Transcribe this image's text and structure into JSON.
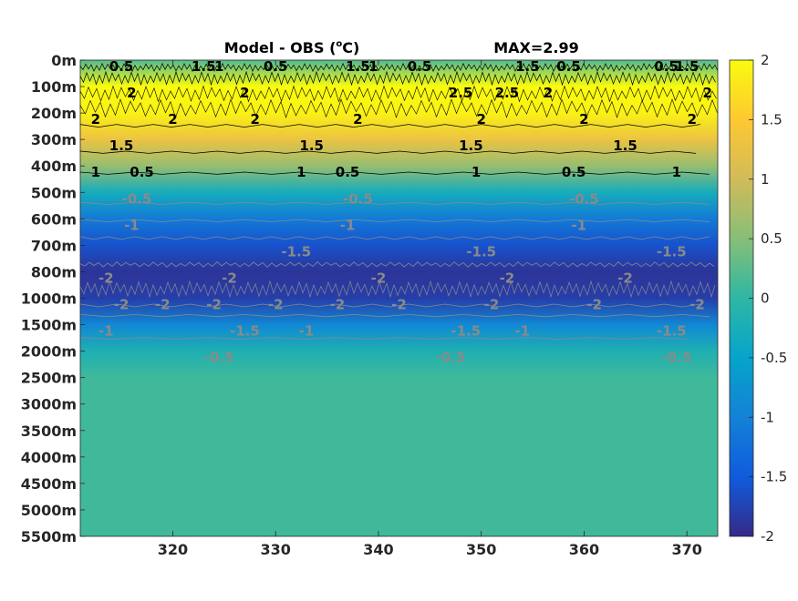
{
  "chart_data": {
    "type": "heatmap",
    "title": "Model - OBS (°C)",
    "title_parts": {
      "main": "Model - OBS (",
      "degree": "o",
      "unit": "C)"
    },
    "max_label": "MAX=2.99",
    "x_ticks": [
      320,
      330,
      340,
      350,
      360,
      370
    ],
    "x_range": [
      311,
      373
    ],
    "y_tick_labels": [
      "0m",
      "100m",
      "200m",
      "300m",
      "400m",
      "500m",
      "600m",
      "700m",
      "800m",
      "1000m",
      "1500m",
      "2000m",
      "2500m",
      "3000m",
      "3500m",
      "4000m",
      "4500m",
      "5000m",
      "5500m"
    ],
    "colorbar": {
      "range": [
        -2,
        2
      ],
      "ticks": [
        2,
        1.5,
        1,
        0.5,
        0,
        -0.5,
        -1,
        -1.5,
        -2
      ],
      "tick_labels": [
        "2",
        "1.5",
        "1",
        "0.5",
        "0",
        "-0.5",
        "-1",
        "-1.5",
        "-2"
      ]
    },
    "depth_profile": [
      {
        "depth": "0m",
        "value": 0.2
      },
      {
        "depth": "100m",
        "value": 2.2
      },
      {
        "depth": "200m",
        "value": 1.9
      },
      {
        "depth": "300m",
        "value": 1.3
      },
      {
        "depth": "400m",
        "value": 0.6
      },
      {
        "depth": "500m",
        "value": -0.3
      },
      {
        "depth": "600m",
        "value": -1.1
      },
      {
        "depth": "700m",
        "value": -1.6
      },
      {
        "depth": "800m",
        "value": -1.9
      },
      {
        "depth": "1000m",
        "value": -1.8
      },
      {
        "depth": "1500m",
        "value": -0.9
      },
      {
        "depth": "2000m",
        "value": -0.2
      },
      {
        "depth": "2500m",
        "value": 0.1
      },
      {
        "depth": "5500m",
        "value": 0.1
      }
    ],
    "contour_labels": [
      {
        "text": "0.5",
        "x": 315,
        "depth": "0m",
        "color": "black"
      },
      {
        "text": "2",
        "x": 316,
        "depth": "100m",
        "color": "black"
      },
      {
        "text": "1.5",
        "x": 323,
        "depth": "0m",
        "color": "black"
      },
      {
        "text": "1",
        "x": 324.5,
        "depth": "0m",
        "color": "black"
      },
      {
        "text": "2",
        "x": 327,
        "depth": "100m",
        "color": "black"
      },
      {
        "text": "0.5",
        "x": 330,
        "depth": "0m",
        "color": "black"
      },
      {
        "text": "1.5",
        "x": 338,
        "depth": "0m",
        "color": "black"
      },
      {
        "text": "1",
        "x": 339.5,
        "depth": "0m",
        "color": "black"
      },
      {
        "text": "0.5",
        "x": 344,
        "depth": "0m",
        "color": "black"
      },
      {
        "text": "2.5",
        "x": 348,
        "depth": "100m",
        "color": "black"
      },
      {
        "text": "2.5",
        "x": 352.5,
        "depth": "100m",
        "color": "black"
      },
      {
        "text": "1.5",
        "x": 354.5,
        "depth": "0m",
        "color": "black"
      },
      {
        "text": "2",
        "x": 356.5,
        "depth": "100m",
        "color": "black"
      },
      {
        "text": "0.5",
        "x": 358.5,
        "depth": "0m",
        "color": "black"
      },
      {
        "text": "0.5",
        "x": 368,
        "depth": "0m",
        "color": "black"
      },
      {
        "text": "1.5",
        "x": 370,
        "depth": "0m",
        "color": "black"
      },
      {
        "text": "2",
        "x": 372,
        "depth": "100m",
        "color": "black"
      },
      {
        "text": "2",
        "x": 312.5,
        "depth": "200m",
        "color": "black"
      },
      {
        "text": "2",
        "x": 320,
        "depth": "200m",
        "color": "black"
      },
      {
        "text": "2",
        "x": 328,
        "depth": "200m",
        "color": "black"
      },
      {
        "text": "2",
        "x": 338,
        "depth": "200m",
        "color": "black"
      },
      {
        "text": "2",
        "x": 350,
        "depth": "200m",
        "color": "black"
      },
      {
        "text": "2",
        "x": 360,
        "depth": "200m",
        "color": "black"
      },
      {
        "text": "2",
        "x": 370.5,
        "depth": "200m",
        "color": "black"
      },
      {
        "text": "1.5",
        "x": 315,
        "depth": "300m",
        "color": "black"
      },
      {
        "text": "1.5",
        "x": 333.5,
        "depth": "300m",
        "color": "black"
      },
      {
        "text": "1.5",
        "x": 349,
        "depth": "300m",
        "color": "black"
      },
      {
        "text": "1.5",
        "x": 364,
        "depth": "300m",
        "color": "black"
      },
      {
        "text": "1",
        "x": 312.5,
        "depth": "400m",
        "color": "black"
      },
      {
        "text": "1",
        "x": 332.5,
        "depth": "400m",
        "color": "black"
      },
      {
        "text": "1",
        "x": 349.5,
        "depth": "400m",
        "color": "black"
      },
      {
        "text": "1",
        "x": 369,
        "depth": "400m",
        "color": "black"
      },
      {
        "text": "0.5",
        "x": 317,
        "depth": "400m",
        "color": "black"
      },
      {
        "text": "0.5",
        "x": 337,
        "depth": "400m",
        "color": "black"
      },
      {
        "text": "0.5",
        "x": 359,
        "depth": "400m",
        "color": "black"
      },
      {
        "text": "-0.5",
        "x": 316.5,
        "depth": "500m",
        "color": "gray"
      },
      {
        "text": "-0.5",
        "x": 338,
        "depth": "500m",
        "color": "gray"
      },
      {
        "text": "-0.5",
        "x": 360,
        "depth": "500m",
        "color": "gray"
      },
      {
        "text": "-1",
        "x": 316,
        "depth": "600m",
        "color": "gray"
      },
      {
        "text": "-1",
        "x": 337,
        "depth": "600m",
        "color": "gray"
      },
      {
        "text": "-1",
        "x": 359.5,
        "depth": "600m",
        "color": "gray"
      },
      {
        "text": "-1.5",
        "x": 332,
        "depth": "700m",
        "color": "gray"
      },
      {
        "text": "-1.5",
        "x": 350,
        "depth": "700m",
        "color": "gray"
      },
      {
        "text": "-1.5",
        "x": 368.5,
        "depth": "700m",
        "color": "gray"
      },
      {
        "text": "-2",
        "x": 313.5,
        "depth": "800m",
        "color": "gray"
      },
      {
        "text": "-2",
        "x": 325.5,
        "depth": "800m",
        "color": "gray"
      },
      {
        "text": "-2",
        "x": 340,
        "depth": "800m",
        "color": "gray"
      },
      {
        "text": "-2",
        "x": 352.5,
        "depth": "800m",
        "color": "gray"
      },
      {
        "text": "-2",
        "x": 364,
        "depth": "800m",
        "color": "gray"
      },
      {
        "text": "-2",
        "x": 315,
        "depth": "1000m",
        "color": "gray"
      },
      {
        "text": "-2",
        "x": 319,
        "depth": "1000m",
        "color": "gray"
      },
      {
        "text": "-2",
        "x": 324,
        "depth": "1000m",
        "color": "gray"
      },
      {
        "text": "-2",
        "x": 330,
        "depth": "1000m",
        "color": "gray"
      },
      {
        "text": "-2",
        "x": 336,
        "depth": "1000m",
        "color": "gray"
      },
      {
        "text": "-2",
        "x": 342,
        "depth": "1000m",
        "color": "gray"
      },
      {
        "text": "-2",
        "x": 351,
        "depth": "1000m",
        "color": "gray"
      },
      {
        "text": "-2",
        "x": 361,
        "depth": "1000m",
        "color": "gray"
      },
      {
        "text": "-2",
        "x": 371,
        "depth": "1000m",
        "color": "gray"
      },
      {
        "text": "-1.5",
        "x": 327,
        "depth": "1500m",
        "color": "gray"
      },
      {
        "text": "-1.5",
        "x": 348.5,
        "depth": "1500m",
        "color": "gray"
      },
      {
        "text": "-1.5",
        "x": 368.5,
        "depth": "1500m",
        "color": "gray"
      },
      {
        "text": "-1",
        "x": 313.5,
        "depth": "1500m",
        "color": "gray"
      },
      {
        "text": "-1",
        "x": 333,
        "depth": "1500m",
        "color": "gray"
      },
      {
        "text": "-1",
        "x": 354,
        "depth": "1500m",
        "color": "gray"
      },
      {
        "text": "-0.5",
        "x": 324.5,
        "depth": "2000m",
        "color": "gray"
      },
      {
        "text": "-0.5",
        "x": 347,
        "depth": "2000m",
        "color": "gray"
      },
      {
        "text": "-0.5",
        "x": 369,
        "depth": "2000m",
        "color": "gray"
      }
    ],
    "colors": {
      "parula_stops": [
        "#352a87",
        "#0f5cdd",
        "#1481d6",
        "#06a4ca",
        "#2eb7a4",
        "#87bf77",
        "#d1bb59",
        "#fec832",
        "#f9fb0e"
      ],
      "contour_positive": "#000000",
      "contour_negative": "#8a8a8a"
    }
  }
}
